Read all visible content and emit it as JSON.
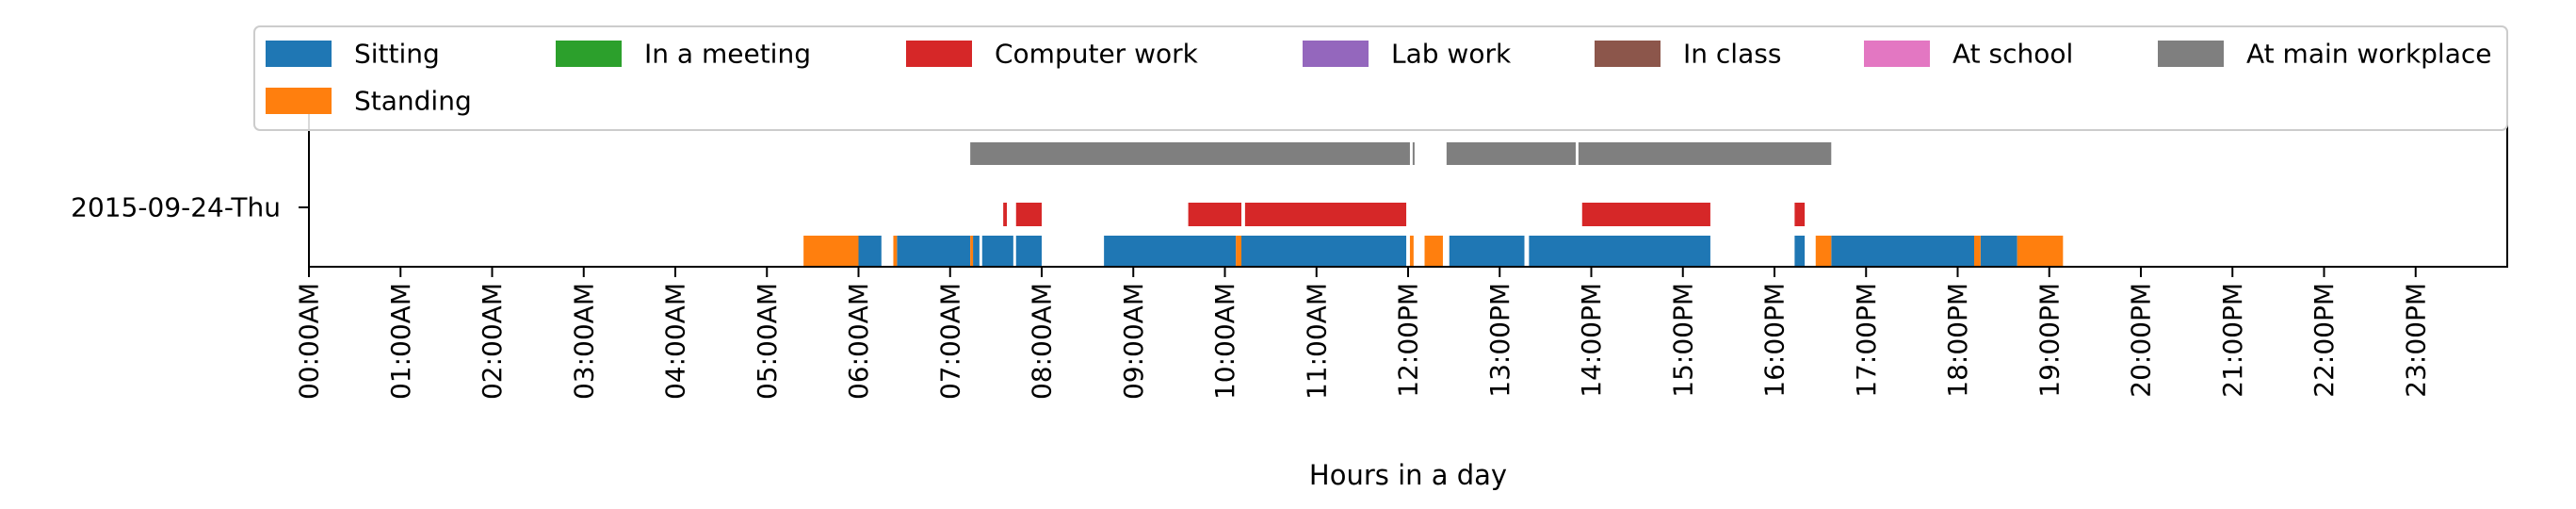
{
  "chart_data": {
    "type": "timeline",
    "title": "",
    "xlabel": "Hours in a day",
    "ylabel": "",
    "day_label": "2015-09-24-Thu",
    "xlim": [
      0,
      24
    ],
    "xticks": [
      {
        "value": 0,
        "label": "00:00AM"
      },
      {
        "value": 1,
        "label": "01:00AM"
      },
      {
        "value": 2,
        "label": "02:00AM"
      },
      {
        "value": 3,
        "label": "03:00AM"
      },
      {
        "value": 4,
        "label": "04:00AM"
      },
      {
        "value": 5,
        "label": "05:00AM"
      },
      {
        "value": 6,
        "label": "06:00AM"
      },
      {
        "value": 7,
        "label": "07:00AM"
      },
      {
        "value": 8,
        "label": "08:00AM"
      },
      {
        "value": 9,
        "label": "09:00AM"
      },
      {
        "value": 10,
        "label": "10:00AM"
      },
      {
        "value": 11,
        "label": "11:00AM"
      },
      {
        "value": 12,
        "label": "12:00PM"
      },
      {
        "value": 13,
        "label": "13:00PM"
      },
      {
        "value": 14,
        "label": "14:00PM"
      },
      {
        "value": 15,
        "label": "15:00PM"
      },
      {
        "value": 16,
        "label": "16:00PM"
      },
      {
        "value": 17,
        "label": "17:00PM"
      },
      {
        "value": 18,
        "label": "18:00PM"
      },
      {
        "value": 19,
        "label": "19:00PM"
      },
      {
        "value": 20,
        "label": "20:00PM"
      },
      {
        "value": 21,
        "label": "21:00PM"
      },
      {
        "value": 22,
        "label": "22:00PM"
      },
      {
        "value": 23,
        "label": "23:00PM"
      }
    ],
    "legend_position": "top",
    "series": [
      {
        "name": "Sitting",
        "color": "#1f77b4",
        "row": "bottom",
        "intervals": [
          [
            6.0,
            6.25
          ],
          [
            6.42,
            7.22
          ],
          [
            7.25,
            7.32
          ],
          [
            7.35,
            7.69
          ],
          [
            7.72,
            8.0
          ],
          [
            8.68,
            10.12
          ],
          [
            10.18,
            11.98
          ],
          [
            12.45,
            13.27
          ],
          [
            13.32,
            15.3
          ],
          [
            16.22,
            16.33
          ],
          [
            16.62,
            18.18
          ],
          [
            18.25,
            18.65
          ]
        ]
      },
      {
        "name": "In a meeting",
        "color": "#2ca02c",
        "row": "middle",
        "intervals": []
      },
      {
        "name": "Computer work",
        "color": "#d62728",
        "row": "middle",
        "intervals": [
          [
            7.58,
            7.62
          ],
          [
            7.72,
            8.0
          ],
          [
            9.6,
            10.18
          ],
          [
            10.22,
            11.98
          ],
          [
            13.9,
            15.3
          ],
          [
            16.22,
            16.33
          ]
        ]
      },
      {
        "name": "Lab work",
        "color": "#9467bd",
        "row": "middle",
        "intervals": []
      },
      {
        "name": "In class",
        "color": "#8c564b",
        "row": "top",
        "intervals": []
      },
      {
        "name": "At school",
        "color": "#e377c2",
        "row": "top",
        "intervals": []
      },
      {
        "name": "At main workplace",
        "color": "#7f7f7f",
        "row": "top",
        "intervals": [
          [
            7.22,
            12.02
          ],
          [
            12.05,
            12.07
          ],
          [
            12.42,
            13.83
          ],
          [
            13.86,
            16.62
          ]
        ]
      },
      {
        "name": "Standing",
        "color": "#ff7f0e",
        "row": "bottom",
        "intervals": [
          [
            5.4,
            6.0
          ],
          [
            6.38,
            6.42
          ],
          [
            7.22,
            7.25
          ],
          [
            10.12,
            10.18
          ],
          [
            12.02,
            12.06
          ],
          [
            12.18,
            12.38
          ],
          [
            16.45,
            16.62
          ],
          [
            18.18,
            18.25
          ],
          [
            18.65,
            19.15
          ]
        ]
      }
    ]
  }
}
